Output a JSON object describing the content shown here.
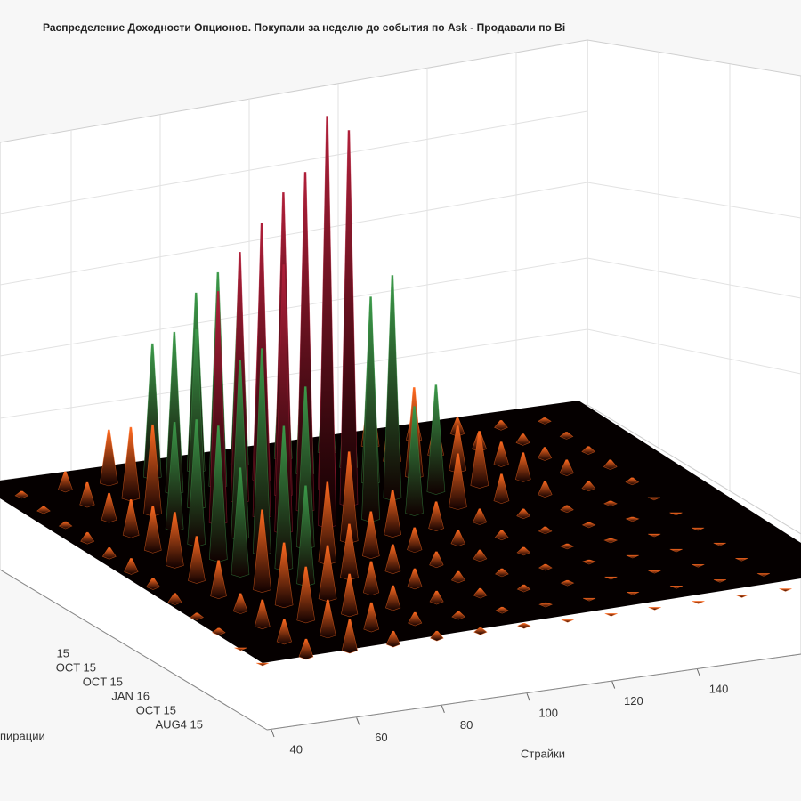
{
  "chart_data": {
    "type": "surface3d",
    "title": "Распределение Доходности Опционов. Покупали за неделю до события по Ask - Продавали по Bi",
    "xlabel": "Страйки",
    "ylabel": "пирации",
    "x": [
      40,
      50,
      60,
      70,
      80,
      90,
      100,
      110,
      120,
      130,
      140,
      150,
      160
    ],
    "xlim": [
      40,
      165
    ],
    "xticks": [
      40,
      60,
      80,
      100,
      120,
      140
    ],
    "categories": [
      "AUG4 15",
      "OCT 15",
      "JAN 16",
      "OCT 15",
      "OCT 15",
      "15",
      null,
      null,
      null,
      null,
      null,
      null
    ],
    "zlim": [
      0,
      500
    ],
    "colormap": [
      "#ff6a20",
      "#3c9a4a",
      "#b0203a"
    ],
    "grid": true,
    "z": [
      [
        0,
        20,
        35,
        15,
        8,
        5,
        3,
        0,
        0,
        0,
        0,
        0,
        0
      ],
      [
        0,
        25,
        40,
        30,
        12,
        6,
        4,
        2,
        0,
        0,
        0,
        0,
        0
      ],
      [
        5,
        30,
        60,
        45,
        25,
        12,
        8,
        5,
        3,
        0,
        0,
        0,
        0
      ],
      [
        5,
        20,
        70,
        60,
        35,
        20,
        10,
        6,
        4,
        2,
        0,
        0,
        0
      ],
      [
        10,
        40,
        90,
        110,
        60,
        30,
        15,
        10,
        6,
        3,
        2,
        0,
        0
      ],
      [
        10,
        50,
        120,
        160,
        90,
        50,
        25,
        15,
        8,
        5,
        3,
        2,
        0
      ],
      [
        15,
        60,
        150,
        230,
        180,
        100,
        50,
        30,
        15,
        8,
        5,
        3,
        0
      ],
      [
        10,
        50,
        140,
        200,
        300,
        460,
        250,
        120,
        60,
        30,
        15,
        8,
        5
      ],
      [
        10,
        40,
        120,
        260,
        330,
        380,
        420,
        250,
        120,
        60,
        30,
        15,
        8
      ],
      [
        5,
        30,
        100,
        200,
        280,
        340,
        300,
        200,
        100,
        50,
        25,
        12,
        6
      ],
      [
        5,
        25,
        80,
        180,
        240,
        260,
        220,
        150,
        80,
        40,
        20,
        10,
        5
      ],
      [
        5,
        20,
        60,
        150,
        200,
        220,
        180,
        120,
        70,
        35,
        18,
        8,
        4
      ]
    ]
  }
}
